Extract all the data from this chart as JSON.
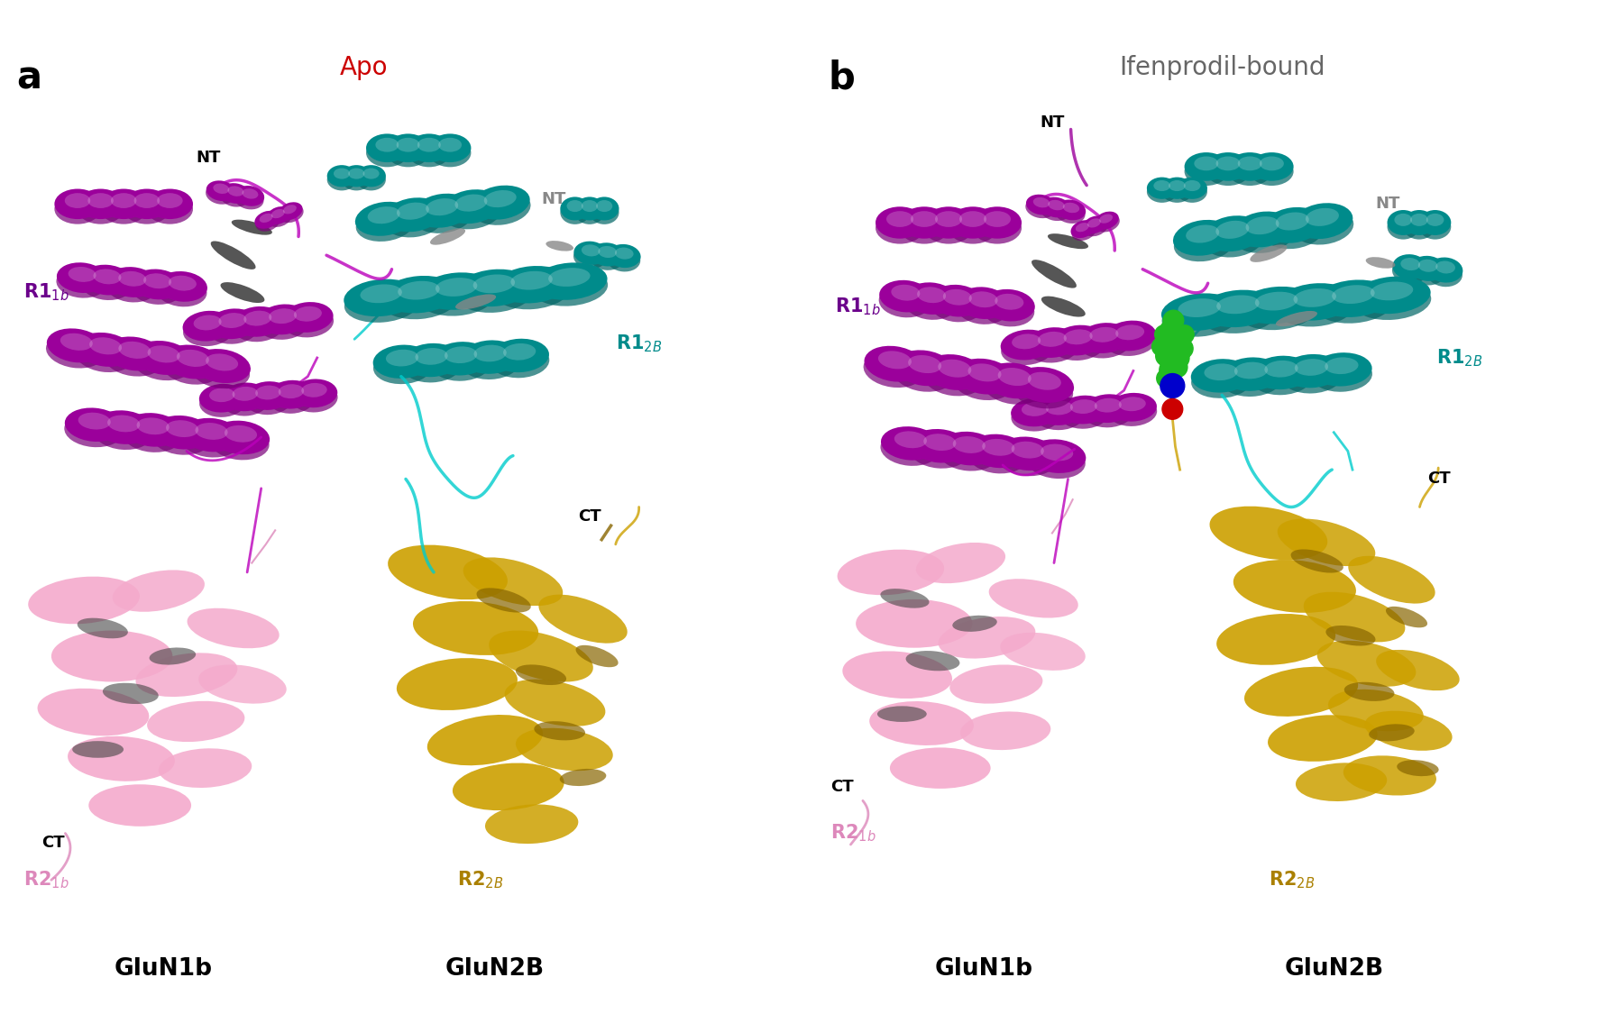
{
  "figure_width": 18.0,
  "figure_height": 11.25,
  "bg": "#ffffff",
  "colors": {
    "purple": "#9B009B",
    "purple2": "#7A007A",
    "magenta": "#BB00BB",
    "teal": "#008B8B",
    "teal2": "#006666",
    "cyan_loop": "#00CCCC",
    "pink": "#EE99CC",
    "light_pink": "#F4AACC",
    "pink2": "#DD88BB",
    "gold": "#CCA000",
    "gold2": "#AA8000",
    "dark_gold": "#886600",
    "dark_gray": "#444444",
    "gray": "#888888",
    "light_gray": "#AAAAAA",
    "black": "#000000",
    "white": "#ffffff",
    "green_ligand": "#22BB22",
    "blue_atom": "#0000CC",
    "red_atom": "#CC0000"
  },
  "panel_a": {
    "label": "a",
    "title": "Apo",
    "title_color": "#CC0000"
  },
  "panel_b": {
    "label": "b",
    "title": "Ifenprodil-bound",
    "title_color": "#666666"
  }
}
